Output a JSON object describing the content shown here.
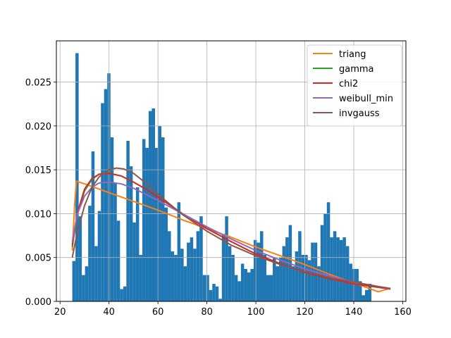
{
  "chart_data": {
    "type": "bar",
    "title": "",
    "xlabel": "",
    "ylabel": "",
    "xlim": [
      18.5,
      161.3
    ],
    "ylim": [
      0,
      0.0297
    ],
    "xticks": [
      20,
      40,
      60,
      80,
      100,
      120,
      140,
      160
    ],
    "yticks": [
      0.0,
      0.005,
      0.01,
      0.015,
      0.02,
      0.025
    ],
    "ytick_labels": [
      "0.000",
      "0.005",
      "0.010",
      "0.015",
      "0.020",
      "0.025"
    ],
    "grid": true,
    "legend_position": "top-right",
    "histogram": {
      "color": "#1f77b4",
      "bin_start": 25.0,
      "bin_width": 1.3,
      "density": [
        0.0046,
        0.0283,
        0.0097,
        0.003,
        0.004,
        0.0109,
        0.0171,
        0.0063,
        0.0103,
        0.0226,
        0.0242,
        0.026,
        0.0187,
        0.0135,
        0.0092,
        0.0014,
        0.0017,
        0.0183,
        0.0154,
        0.009,
        0.013,
        0.0053,
        0.0185,
        0.0175,
        0.0217,
        0.022,
        0.0175,
        0.02,
        0.0187,
        0.0107,
        0.008,
        0.0057,
        0.0053,
        0.0113,
        0.006,
        0.004,
        0.0067,
        0.0073,
        0.006,
        0.008,
        0.0097,
        0.003,
        0.003,
        0.0013,
        0.002,
        0.0017,
        0.0003,
        0.0077,
        0.0097,
        0.0063,
        0.0053,
        0.003,
        0.0023,
        0.0043,
        0.0037,
        0.0033,
        0.0037,
        0.007,
        0.0067,
        0.008,
        0.0053,
        0.003,
        0.003,
        0.005,
        0.004,
        0.005,
        0.0063,
        0.0073,
        0.0087,
        0.004,
        0.0057,
        0.008,
        0.0053,
        0.0053,
        0.0047,
        0.0067,
        0.0067,
        0.004,
        0.0087,
        0.01,
        0.0113,
        0.0073,
        0.008,
        0.0073,
        0.007,
        0.0073,
        0.0063,
        0.0043,
        0.0037,
        0.0037,
        0.0023,
        0.0007,
        0.0013,
        0.002
      ]
    },
    "series": [
      {
        "name": "triang",
        "color": "#ff7f0e",
        "x": [
          25,
          26,
          26.7,
          30,
          40,
          50,
          60,
          70,
          80,
          90,
          100,
          110,
          120,
          130,
          140,
          150,
          155
        ],
        "y": [
          0.0058,
          0.0112,
          0.0137,
          0.0134,
          0.0124,
          0.0114,
          0.0104,
          0.0093,
          0.0083,
          0.0073,
          0.0062,
          0.0052,
          0.0042,
          0.0031,
          0.0021,
          0.0011,
          0.0015
        ]
      },
      {
        "name": "gamma",
        "color": "#2ca02c",
        "x": [
          25,
          27,
          30,
          33,
          36,
          40,
          45,
          50,
          55,
          60,
          70,
          80,
          90,
          100,
          110,
          120,
          130,
          140,
          150,
          155
        ],
        "y": [
          0.0062,
          0.0098,
          0.0126,
          0.0139,
          0.0145,
          0.0146,
          0.0143,
          0.0136,
          0.0128,
          0.0119,
          0.01,
          0.0083,
          0.0068,
          0.0054,
          0.0043,
          0.0033,
          0.0026,
          0.002,
          0.0016,
          0.0014
        ]
      },
      {
        "name": "chi2",
        "color": "#d62728",
        "x": [
          25,
          27,
          30,
          33,
          36,
          40,
          45,
          50,
          55,
          60,
          70,
          80,
          90,
          100,
          110,
          120,
          130,
          140,
          150,
          155
        ],
        "y": [
          0.0064,
          0.01,
          0.0128,
          0.014,
          0.0145,
          0.0146,
          0.0143,
          0.0136,
          0.0128,
          0.0119,
          0.01,
          0.0083,
          0.0068,
          0.0054,
          0.0043,
          0.0033,
          0.0026,
          0.002,
          0.0016,
          0.0014
        ]
      },
      {
        "name": "weibull_min",
        "color": "#9467bd",
        "x": [
          25,
          27,
          30,
          33,
          36,
          40,
          45,
          50,
          55,
          60,
          70,
          80,
          90,
          100,
          110,
          120,
          130,
          140,
          150,
          155
        ],
        "y": [
          0.0068,
          0.0099,
          0.012,
          0.013,
          0.0135,
          0.0136,
          0.0134,
          0.0129,
          0.0122,
          0.0115,
          0.01,
          0.0085,
          0.0071,
          0.0058,
          0.0047,
          0.0037,
          0.0029,
          0.0022,
          0.0017,
          0.0015
        ]
      },
      {
        "name": "invgauss",
        "color": "#8c564b",
        "x": [
          25,
          27,
          30,
          33,
          36,
          40,
          43,
          46,
          50,
          55,
          60,
          70,
          80,
          90,
          100,
          110,
          120,
          130,
          140,
          150,
          155
        ],
        "y": [
          0.005,
          0.0078,
          0.0109,
          0.013,
          0.0142,
          0.015,
          0.0152,
          0.0151,
          0.0146,
          0.0135,
          0.0122,
          0.0099,
          0.008,
          0.0064,
          0.0052,
          0.0042,
          0.0034,
          0.0027,
          0.0022,
          0.0017,
          0.0014
        ]
      }
    ]
  }
}
